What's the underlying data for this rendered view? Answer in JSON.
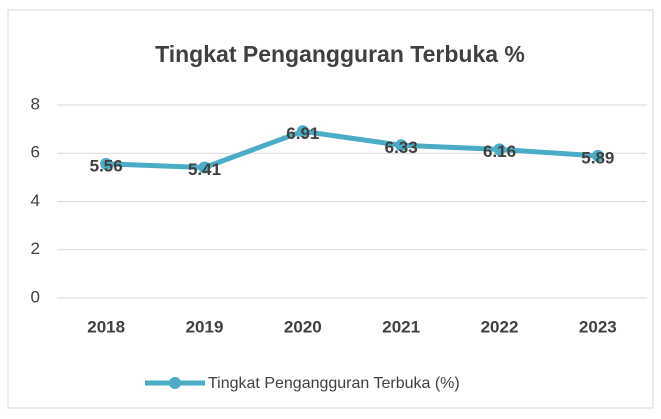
{
  "chart_data": {
    "type": "line",
    "title": "Tingkat Pengangguran Terbuka %",
    "categories": [
      "2018",
      "2019",
      "2020",
      "2021",
      "2022",
      "2023"
    ],
    "series": [
      {
        "name": "Tingkat Pengangguran Terbuka (%)",
        "color": "#4bacc6",
        "values": [
          5.56,
          5.41,
          6.91,
          6.33,
          6.16,
          5.89
        ]
      }
    ],
    "ylim": [
      0,
      8
    ],
    "yticks": [
      0,
      2,
      4,
      6,
      8
    ],
    "grid": true,
    "legend": "bottom",
    "data_labels": true
  }
}
